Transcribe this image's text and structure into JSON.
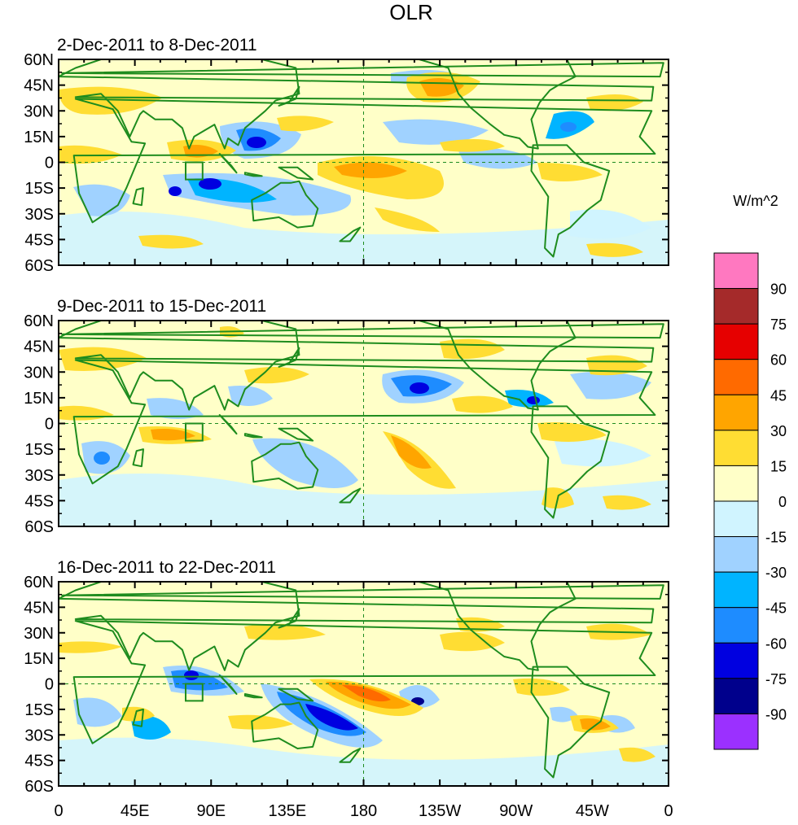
{
  "figure": {
    "title": "OLR",
    "units_label": "W/m^2",
    "panels": [
      {
        "label": "2-Dec-2011 to 8-Dec-2011"
      },
      {
        "label": "9-Dec-2011 to 15-Dec-2011"
      },
      {
        "label": "16-Dec-2011 to 22-Dec-2011"
      }
    ],
    "lat_ticks": [
      "60N",
      "45N",
      "30N",
      "15N",
      "0",
      "15S",
      "30S",
      "45S",
      "60S"
    ],
    "lon_ticks": [
      "0",
      "45E",
      "90E",
      "135E",
      "180",
      "135W",
      "90W",
      "45W",
      "0"
    ]
  },
  "colorbar": {
    "labels": [
      "90",
      "75",
      "60",
      "45",
      "30",
      "15",
      "0",
      "-15",
      "-30",
      "-45",
      "-60",
      "-75",
      "-90"
    ],
    "colors": [
      "#ff78c0",
      "#a52a2a",
      "#e60000",
      "#ff6a00",
      "#ffa500",
      "#ffdd33",
      "#ffffc8",
      "#d0f4ff",
      "#a0d2ff",
      "#00b4ff",
      "#1e8cff",
      "#0000e0",
      "#00008c",
      "#9b30ff"
    ]
  }
}
